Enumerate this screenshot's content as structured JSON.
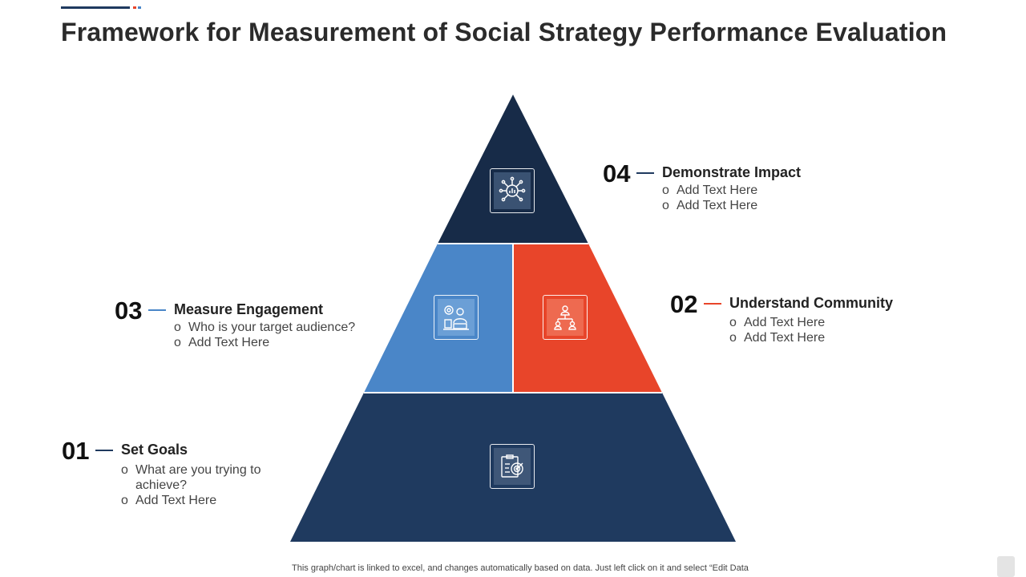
{
  "title": "Framework for Measurement of Social Strategy Performance Evaluation",
  "colors": {
    "navy": "#1f3a5f",
    "dark_navy": "#172b48",
    "blue": "#4a86c8",
    "red": "#e8452a"
  },
  "steps": [
    {
      "number": "01",
      "heading": "Set Goals",
      "bullets": [
        "What are you trying to achieve?",
        "Add Text Here"
      ],
      "icon": "target-clipboard-icon",
      "color": "#1f3a5f"
    },
    {
      "number": "02",
      "heading": "Understand Community",
      "bullets": [
        "Add Text Here",
        "Add Text Here"
      ],
      "icon": "org-chart-icon",
      "color": "#e8452a"
    },
    {
      "number": "03",
      "heading": "Measure Engagement",
      "bullets": [
        "Who is your target audience?",
        "Add Text Here"
      ],
      "icon": "user-gear-icon",
      "color": "#4a86c8"
    },
    {
      "number": "04",
      "heading": "Demonstrate Impact",
      "bullets": [
        "Add Text Here",
        "Add Text Here"
      ],
      "icon": "network-chart-icon",
      "color": "#172b48"
    }
  ],
  "footer": "This graph/chart is linked to excel, and changes automatically based on data. Just left click on it and select “Edit Data"
}
